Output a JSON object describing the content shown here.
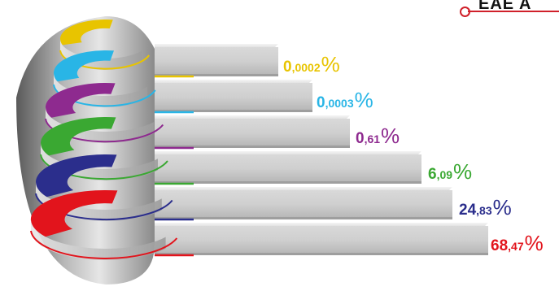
{
  "header": {
    "title_fragment": "EAE A",
    "accent_color": "#d0202a"
  },
  "chart_data": {
    "type": "bar",
    "style": "3d-stepped-spiral",
    "values": [
      0.0002,
      0.0003,
      0.61,
      6.09,
      24.83,
      68.47
    ],
    "value_labels": [
      {
        "int": "0",
        "dec": ",0002",
        "unit": "%"
      },
      {
        "int": "0",
        "dec": ",0003",
        "unit": "%"
      },
      {
        "int": "0",
        "dec": ",61",
        "unit": "%"
      },
      {
        "int": "6",
        "dec": ",09",
        "unit": "%"
      },
      {
        "int": "24",
        "dec": ",83",
        "unit": "%"
      },
      {
        "int": "68",
        "dec": ",47",
        "unit": "%"
      }
    ],
    "colors": [
      "#e8c400",
      "#29b5e6",
      "#8e2a8f",
      "#3aa832",
      "#2b2e8c",
      "#e2141c"
    ],
    "legend": "none",
    "grid": false
  }
}
